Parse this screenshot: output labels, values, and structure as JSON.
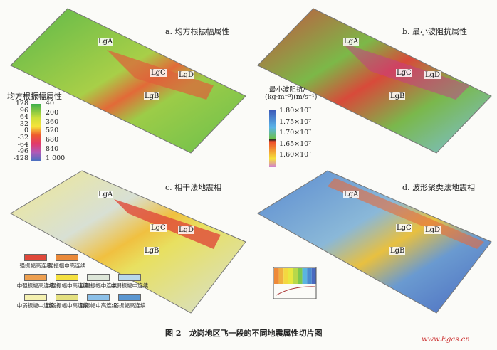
{
  "panels": {
    "a": {
      "title": "a. 均方根振幅属性"
    },
    "b": {
      "title": "b. 最小波阻抗属性"
    },
    "c": {
      "title": "c. 相干法地震相"
    },
    "d": {
      "title": "d. 波形聚类法地震相"
    }
  },
  "wells": [
    "LgA",
    "LgB",
    "LgC",
    "LgD"
  ],
  "legend_a": {
    "title": "均方根振幅属性",
    "left_ticks": [
      "128",
      "96",
      "64",
      "32",
      "0",
      "-32",
      "-64",
      "-96",
      "-128"
    ],
    "right_ticks": [
      "40",
      "200",
      "360",
      "520",
      "680",
      "840",
      "1 000"
    ],
    "colors": [
      "#3cae4a",
      "#cfe03a",
      "#f6e23a",
      "#ee5a2e",
      "#e23a6a",
      "#b05ab8",
      "#4a70c0"
    ]
  },
  "legend_b": {
    "title": "最小波阻抗/",
    "unit": "(kg·m⁻³)(m/s⁻¹)",
    "ticks": [
      "1.80×10⁷",
      "1.75×10⁷",
      "1.70×10⁷",
      "1.65×10⁷",
      "1.60×10⁷"
    ],
    "colors": [
      "#3c5ab8",
      "#5ab4e8",
      "#6cc04a",
      "#222222",
      "#ee4a2a",
      "#f6e23a",
      "#d080d0"
    ]
  },
  "legend_c": [
    {
      "label": "强振幅高连续",
      "color": "#e0483a"
    },
    {
      "label": "强振幅中高连续",
      "color": "#ea8a3a"
    },
    {
      "label": "中强振幅高连续",
      "color": "#eea050"
    },
    {
      "label": "中强振幅中高连续",
      "color": "#f4e040"
    },
    {
      "label": "低弱振幅中连续",
      "color": "#dde6d8"
    },
    {
      "label": "中弱振幅中连续",
      "color": "#b8d8ec"
    },
    {
      "label": "中弱振幅中连续",
      "color": "#f4f0b0"
    },
    {
      "label": "低弱振幅中高连续",
      "color": "#e4e080"
    },
    {
      "label": "弱振幅中高连续",
      "color": "#8cc0e8"
    },
    {
      "label": "弱振幅高连续",
      "color": "#5a96d0"
    }
  ],
  "legend_d": {
    "colors": [
      "#ee8a3a",
      "#f0b040",
      "#f4d840",
      "#e8e840",
      "#b8d84a",
      "#7cc850",
      "#5ab4e0",
      "#4a8ad0",
      "#4a6ac0"
    ]
  },
  "caption": "图 2　龙岗地区飞一段的不同地震属性切片图",
  "watermark": "www.Egas.cn"
}
